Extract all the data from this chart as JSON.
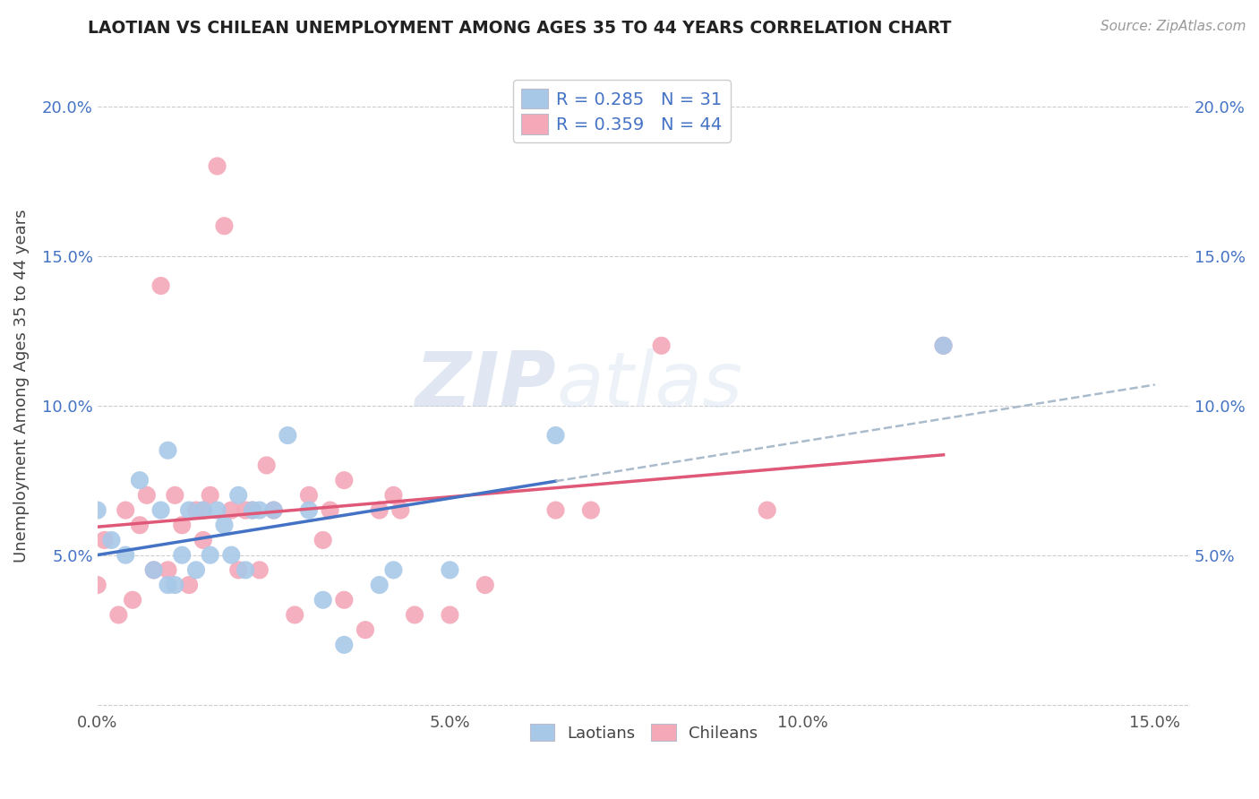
{
  "title": "LAOTIAN VS CHILEAN UNEMPLOYMENT AMONG AGES 35 TO 44 YEARS CORRELATION CHART",
  "source": "Source: ZipAtlas.com",
  "ylabel": "Unemployment Among Ages 35 to 44 years",
  "xlim": [
    0.0,
    0.155
  ],
  "ylim": [
    -0.002,
    0.215
  ],
  "xticks": [
    0.0,
    0.05,
    0.1,
    0.15
  ],
  "xtick_labels": [
    "0.0%",
    "5.0%",
    "10.0%",
    "15.0%"
  ],
  "yticks": [
    0.0,
    0.05,
    0.1,
    0.15,
    0.2
  ],
  "ytick_labels": [
    "",
    "5.0%",
    "10.0%",
    "15.0%",
    "20.0%"
  ],
  "bottom_legend_labels": [
    "Laotians",
    "Chileans"
  ],
  "R_laotian": 0.285,
  "N_laotian": 31,
  "R_chilean": 0.359,
  "N_chilean": 44,
  "laotian_color": "#a8c8e8",
  "chilean_color": "#f4a8b8",
  "laotian_line_color": "#4472c4",
  "chilean_line_color": "#e05878",
  "dash_color": "#aabbcc",
  "background_color": "#ffffff",
  "laotian_x": [
    0.0,
    0.002,
    0.004,
    0.006,
    0.008,
    0.009,
    0.01,
    0.01,
    0.011,
    0.012,
    0.013,
    0.014,
    0.015,
    0.016,
    0.017,
    0.018,
    0.019,
    0.02,
    0.021,
    0.022,
    0.023,
    0.025,
    0.027,
    0.03,
    0.032,
    0.035,
    0.04,
    0.042,
    0.05,
    0.065,
    0.12
  ],
  "laotian_y": [
    0.065,
    0.055,
    0.05,
    0.075,
    0.045,
    0.065,
    0.04,
    0.085,
    0.04,
    0.05,
    0.065,
    0.045,
    0.065,
    0.05,
    0.065,
    0.06,
    0.05,
    0.07,
    0.045,
    0.065,
    0.065,
    0.065,
    0.09,
    0.065,
    0.035,
    0.02,
    0.04,
    0.045,
    0.045,
    0.09,
    0.12
  ],
  "chilean_x": [
    0.0,
    0.001,
    0.003,
    0.004,
    0.005,
    0.006,
    0.007,
    0.008,
    0.009,
    0.01,
    0.011,
    0.012,
    0.013,
    0.014,
    0.015,
    0.015,
    0.016,
    0.017,
    0.018,
    0.019,
    0.02,
    0.021,
    0.022,
    0.023,
    0.024,
    0.025,
    0.028,
    0.03,
    0.032,
    0.033,
    0.035,
    0.035,
    0.038,
    0.04,
    0.042,
    0.043,
    0.045,
    0.05,
    0.055,
    0.065,
    0.07,
    0.08,
    0.095,
    0.12
  ],
  "chilean_y": [
    0.04,
    0.055,
    0.03,
    0.065,
    0.035,
    0.06,
    0.07,
    0.045,
    0.14,
    0.045,
    0.07,
    0.06,
    0.04,
    0.065,
    0.055,
    0.065,
    0.07,
    0.18,
    0.16,
    0.065,
    0.045,
    0.065,
    0.065,
    0.045,
    0.08,
    0.065,
    0.03,
    0.07,
    0.055,
    0.065,
    0.075,
    0.035,
    0.025,
    0.065,
    0.07,
    0.065,
    0.03,
    0.03,
    0.04,
    0.065,
    0.065,
    0.12,
    0.065,
    0.12
  ]
}
